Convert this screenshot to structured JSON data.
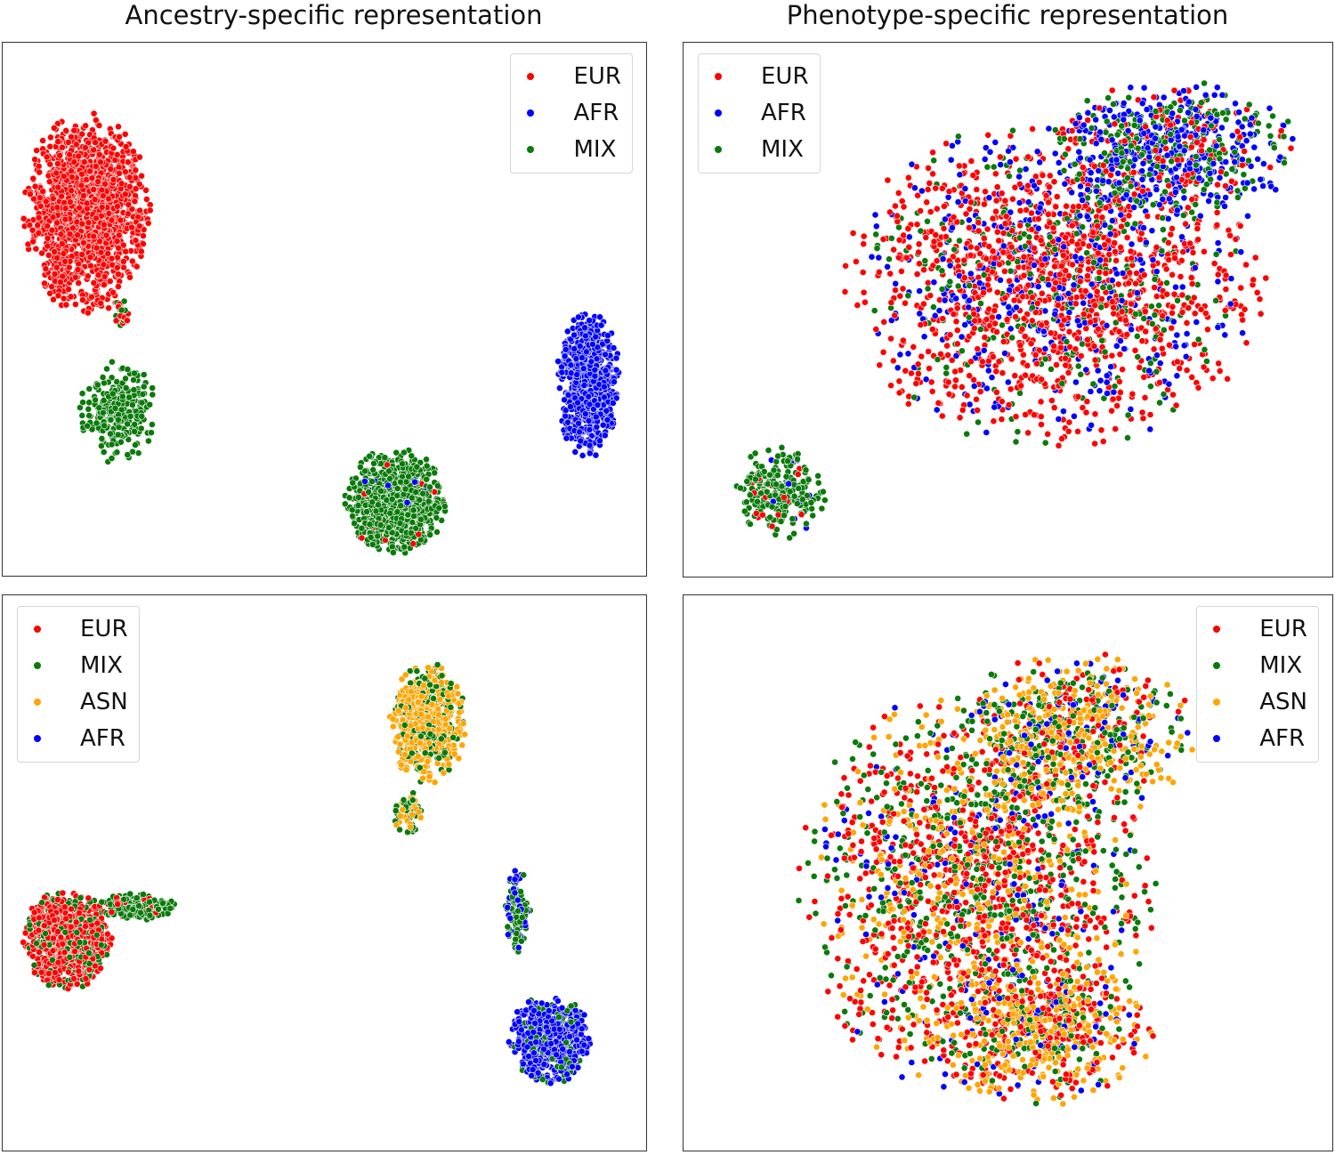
{
  "titles": {
    "left": "Ancestry-specific representation",
    "right": "Phenotype-specific representation"
  },
  "colors": {
    "EUR": "#ff0000",
    "AFR": "#0000ff",
    "MIX": "#0a7a0a",
    "ASN": "#ffa500"
  },
  "chart_data": [
    {
      "type": "scatter",
      "title": "Ancestry-specific representation",
      "xlabel": "",
      "ylabel": "",
      "legend": [
        "EUR",
        "AFR",
        "MIX"
      ],
      "legend_position": "top-right",
      "xlim": [
        0,
        100
      ],
      "ylim": [
        0,
        100
      ],
      "clusters": [
        {
          "cx": 18,
          "cy": 31,
          "rx": 6,
          "ry": 10,
          "n": 250,
          "mix": {
            "MIX": 1
          }
        },
        {
          "cx": 13,
          "cy": 68,
          "rx": 10,
          "ry": 19,
          "n": 1500,
          "mix": {
            "EUR": 1
          }
        },
        {
          "cx": 18.5,
          "cy": 49,
          "rx": 1.3,
          "ry": 3,
          "n": 30,
          "mix": {
            "EUR": 0.5,
            "MIX": 0.5
          }
        },
        {
          "cx": 91,
          "cy": 36,
          "rx": 5,
          "ry": 14,
          "n": 800,
          "mix": {
            "AFR": 1
          }
        },
        {
          "cx": 61,
          "cy": 14,
          "rx": 8,
          "ry": 10,
          "n": 900,
          "mix": {
            "MIX": 0.96,
            "EUR": 0.02,
            "AFR": 0.02
          }
        }
      ]
    },
    {
      "type": "scatter",
      "title": "Phenotype-specific representation",
      "xlabel": "",
      "ylabel": "",
      "legend": [
        "EUR",
        "AFR",
        "MIX"
      ],
      "legend_position": "top-left",
      "xlim": [
        0,
        100
      ],
      "ylim": [
        0,
        100
      ],
      "clusters": [
        {
          "cx": 57,
          "cy": 55,
          "rx": 33,
          "ry": 31,
          "n": 2400,
          "mix": {
            "EUR": 0.62,
            "AFR": 0.23,
            "MIX": 0.15
          }
        },
        {
          "cx": 75,
          "cy": 80,
          "rx": 20,
          "ry": 13,
          "n": 700,
          "mix": {
            "AFR": 0.45,
            "MIX": 0.35,
            "EUR": 0.2
          }
        },
        {
          "cx": 15,
          "cy": 16,
          "rx": 7,
          "ry": 9,
          "n": 250,
          "mix": {
            "MIX": 0.85,
            "AFR": 0.08,
            "EUR": 0.07
          }
        }
      ]
    },
    {
      "type": "scatter",
      "title": "",
      "xlabel": "",
      "ylabel": "",
      "legend": [
        "EUR",
        "MIX",
        "ASN",
        "AFR"
      ],
      "legend_position": "top-left",
      "xlim": [
        0,
        100
      ],
      "ylim": [
        0,
        100
      ],
      "clusters": [
        {
          "cx": 10,
          "cy": 38,
          "rx": 7,
          "ry": 9,
          "n": 1000,
          "mix": {
            "EUR": 0.72,
            "MIX": 0.28
          }
        },
        {
          "cx": 21,
          "cy": 44,
          "rx": 6,
          "ry": 2.5,
          "n": 220,
          "mix": {
            "MIX": 0.75,
            "EUR": 0.25
          }
        },
        {
          "cx": 66,
          "cy": 77,
          "rx": 6,
          "ry": 11,
          "n": 700,
          "mix": {
            "ASN": 0.72,
            "MIX": 0.28
          }
        },
        {
          "cx": 63,
          "cy": 61,
          "rx": 2.5,
          "ry": 4,
          "n": 60,
          "mix": {
            "MIX": 0.5,
            "ASN": 0.5
          }
        },
        {
          "cx": 85,
          "cy": 20,
          "rx": 6.5,
          "ry": 8,
          "n": 700,
          "mix": {
            "AFR": 0.85,
            "MIX": 0.15
          }
        },
        {
          "cx": 80,
          "cy": 43,
          "rx": 2,
          "ry": 8,
          "n": 120,
          "mix": {
            "MIX": 0.6,
            "AFR": 0.4
          }
        }
      ]
    },
    {
      "type": "scatter",
      "title": "",
      "xlabel": "",
      "ylabel": "",
      "legend": [
        "EUR",
        "MIX",
        "ASN",
        "AFR"
      ],
      "legend_position": "top-right",
      "xlim": [
        0,
        100
      ],
      "ylim": [
        0,
        100
      ],
      "clusters": [
        {
          "cx": 45,
          "cy": 47,
          "rx": 28,
          "ry": 37,
          "n": 2200,
          "mix": {
            "EUR": 0.4,
            "MIX": 0.28,
            "ASN": 0.24,
            "AFR": 0.08
          }
        },
        {
          "cx": 60,
          "cy": 75,
          "rx": 19,
          "ry": 15,
          "n": 700,
          "mix": {
            "ASN": 0.42,
            "MIX": 0.3,
            "EUR": 0.15,
            "AFR": 0.13
          }
        },
        {
          "cx": 55,
          "cy": 22,
          "rx": 18,
          "ry": 14,
          "n": 600,
          "mix": {
            "ASN": 0.45,
            "EUR": 0.3,
            "MIX": 0.17,
            "AFR": 0.08
          }
        }
      ]
    }
  ]
}
